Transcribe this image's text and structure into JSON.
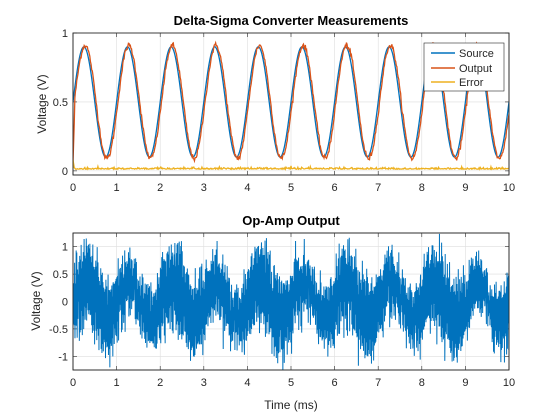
{
  "chart_data": [
    {
      "type": "line",
      "title": "Delta-Sigma Converter Measurements",
      "xlabel": "",
      "ylabel": "Voltage (V)",
      "xlim": [
        0,
        10
      ],
      "ylim": [
        -0.03,
        1.0
      ],
      "xticks": [
        "0",
        "1",
        "2",
        "3",
        "4",
        "5",
        "6",
        "7",
        "8",
        "9",
        "10"
      ],
      "yticks": [
        "0",
        "0.5",
        "1"
      ],
      "grid": true,
      "legend_position": "top-right",
      "series": [
        {
          "name": "Source",
          "color": "#0072BD",
          "function": "0.5 + 0.4*sin(2*pi*t)",
          "x_range": [
            0,
            10
          ]
        },
        {
          "name": "Output",
          "color": "#D95319",
          "function": "0.5 + 0.41*sin(2*pi*(t - 0.03))",
          "x_range": [
            0,
            10
          ]
        },
        {
          "name": "Error",
          "color": "#EDB120",
          "function": "0.01 + noise(0.01)",
          "x_range": [
            0,
            10
          ]
        }
      ]
    },
    {
      "type": "line",
      "title": "Op-Amp Output",
      "xlabel": "Time (ms)",
      "ylabel": "Voltage (V)",
      "xlim": [
        0,
        10
      ],
      "ylim": [
        -1.25,
        1.25
      ],
      "xticks": [
        "0",
        "1",
        "2",
        "3",
        "4",
        "5",
        "6",
        "7",
        "8",
        "9",
        "10"
      ],
      "yticks": [
        "-1",
        "-0.5",
        "0",
        "0.5",
        "1"
      ],
      "grid": true,
      "series": [
        {
          "color": "#0072BD",
          "function": "0.35*sin(2*pi*t) + 0.55*sin(2*pi*60*t) + noise(0.2)",
          "x_range": [
            0,
            10
          ]
        }
      ]
    }
  ]
}
